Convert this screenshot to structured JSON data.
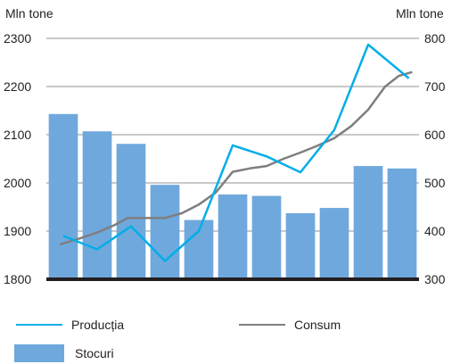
{
  "chart_data": {
    "type": "bar+line",
    "left_axis": {
      "label": "Mln tone",
      "min": 1800,
      "max": 2300,
      "ticks": [
        1800,
        1900,
        2000,
        2100,
        2200,
        2300
      ]
    },
    "right_axis": {
      "label": "Mln tone",
      "min": 300,
      "max": 800,
      "ticks": [
        300,
        400,
        500,
        600,
        700,
        800
      ]
    },
    "grid": true,
    "legend_position": "bottom-left",
    "categories_count": 11,
    "series": [
      {
        "name": "Stocuri",
        "type": "bar",
        "axis": "right",
        "color": "#6fa8dc",
        "values": [
          643,
          607,
          581,
          496,
          423,
          476,
          473,
          437,
          448,
          535,
          530
        ]
      },
      {
        "name": "Producția",
        "type": "line",
        "axis": "left",
        "color": "#00aee8",
        "points": [
          [
            0.5,
            1890
          ],
          [
            1.5,
            1862
          ],
          [
            2.5,
            1910
          ],
          [
            3.5,
            1838
          ],
          [
            4.5,
            1900
          ],
          [
            5.5,
            2078
          ],
          [
            6.5,
            2055
          ],
          [
            7.5,
            2022
          ],
          [
            8.5,
            2110
          ],
          [
            9.5,
            2287
          ],
          [
            10.7,
            2217
          ]
        ]
      },
      {
        "name": "Consum",
        "type": "line",
        "axis": "left",
        "color": "#7f7f7f",
        "points": [
          [
            0.4,
            1872
          ],
          [
            1,
            1885
          ],
          [
            1.5,
            1897
          ],
          [
            2,
            1912
          ],
          [
            2.4,
            1927
          ],
          [
            3,
            1927
          ],
          [
            3.5,
            1927
          ],
          [
            4,
            1937
          ],
          [
            4.5,
            1955
          ],
          [
            5,
            1980
          ],
          [
            5.5,
            2023
          ],
          [
            6,
            2030
          ],
          [
            6.5,
            2035
          ],
          [
            7,
            2050
          ],
          [
            7.5,
            2063
          ],
          [
            8,
            2077
          ],
          [
            8.5,
            2093
          ],
          [
            9,
            2118
          ],
          [
            9.5,
            2152
          ],
          [
            10,
            2200
          ],
          [
            10.4,
            2222
          ],
          [
            10.8,
            2230
          ]
        ]
      }
    ]
  }
}
